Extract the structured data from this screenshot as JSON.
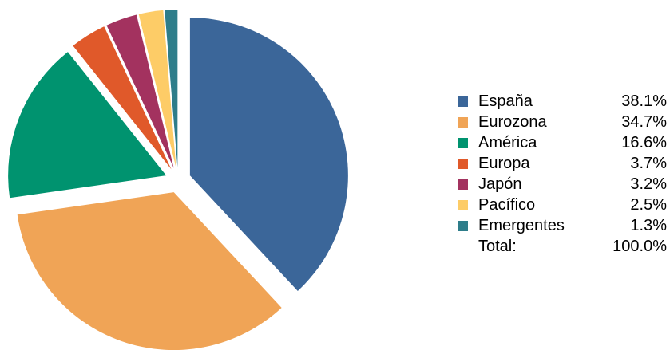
{
  "chart_data": {
    "type": "pie",
    "title": "",
    "categories": [
      "España",
      "Eurozona",
      "América",
      "Europa",
      "Japón",
      "Pacífico",
      "Emergentes"
    ],
    "values": [
      38.1,
      34.7,
      16.6,
      3.7,
      3.2,
      2.5,
      1.3
    ],
    "value_labels": [
      "38.1%",
      "34.7%",
      "16.6%",
      "3.7%",
      "3.2%",
      "2.5%",
      "1.3%"
    ],
    "colors": [
      "#3b6699",
      "#f0a456",
      "#00936f",
      "#e0592a",
      "#a3325f",
      "#fdcc67",
      "#2e7d8a"
    ],
    "exploded": true,
    "legend_position": "right",
    "total_label": "Total:",
    "total_value": "100.0%"
  }
}
